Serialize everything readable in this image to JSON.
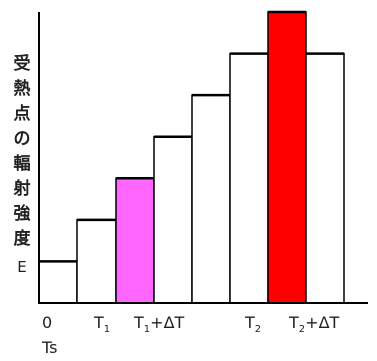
{
  "y_axis": {
    "label_chars": [
      "受",
      "熱",
      "点",
      "の",
      "輻",
      "射",
      "強",
      "度"
    ],
    "label_unit": "E"
  },
  "x_ticks": [
    {
      "label": "0",
      "sub": ""
    },
    {
      "label": "T",
      "sub": "1"
    },
    {
      "label": "T",
      "sub": "1",
      "suffix": "+ΔT"
    },
    {
      "label": "T",
      "sub": "2"
    },
    {
      "label": "T",
      "sub": "2",
      "suffix": "+ΔT"
    }
  ],
  "x_secondary_label": "Ts",
  "colors": {
    "T1_highlight": "#ff66ff",
    "T2_highlight": "#ff0000",
    "outline": "#000000",
    "background": "#ffffff"
  },
  "bars": [
    {
      "level": 1,
      "highlight": null
    },
    {
      "level": 2,
      "highlight": null
    },
    {
      "level": 3,
      "highlight": "T1_highlight"
    },
    {
      "level": 4,
      "highlight": null
    },
    {
      "level": 5,
      "highlight": null
    },
    {
      "level": 6,
      "highlight": null
    },
    {
      "level": 7,
      "highlight": "T2_highlight"
    },
    {
      "level": 6,
      "highlight": null
    }
  ]
}
